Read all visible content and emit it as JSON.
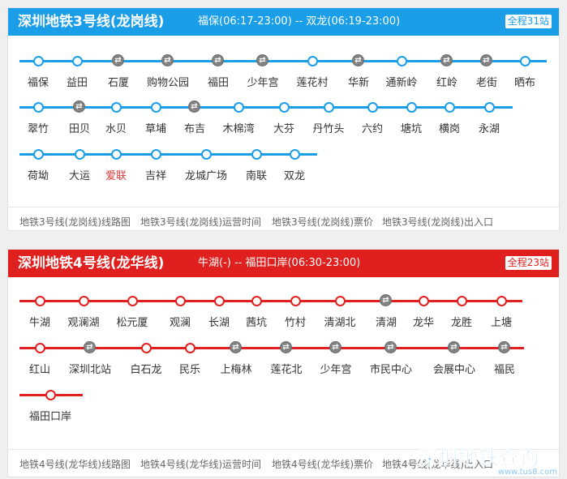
{
  "line3": {
    "name": "深圳地铁3号线(龙岗线)",
    "meta": "福保(06:17-23:00) -- 双龙(06:19-23:00)",
    "badge": "全程31站",
    "color": "#1a9ee8",
    "rows": [
      [
        {
          "name": "福保",
          "transfer": false
        },
        {
          "name": "益田",
          "transfer": false
        },
        {
          "name": "石厦",
          "transfer": true
        },
        {
          "name": "购物公园",
          "transfer": true
        },
        {
          "name": "福田",
          "transfer": true
        },
        {
          "name": "少年宫",
          "transfer": true
        },
        {
          "name": "莲花村",
          "transfer": false
        },
        {
          "name": "华新",
          "transfer": true
        },
        {
          "name": "通新岭",
          "transfer": false
        },
        {
          "name": "红岭",
          "transfer": true
        },
        {
          "name": "老街",
          "transfer": true
        },
        {
          "name": "晒布",
          "transfer": false
        }
      ],
      [
        {
          "name": "翠竹",
          "transfer": false
        },
        {
          "name": "田贝",
          "transfer": true
        },
        {
          "name": "水贝",
          "transfer": false
        },
        {
          "name": "草埔",
          "transfer": false
        },
        {
          "name": "布吉",
          "transfer": true
        },
        {
          "name": "木棉湾",
          "transfer": false
        },
        {
          "name": "大芬",
          "transfer": false
        },
        {
          "name": "丹竹头",
          "transfer": false
        },
        {
          "name": "六约",
          "transfer": false
        },
        {
          "name": "塘坑",
          "transfer": false
        },
        {
          "name": "横岗",
          "transfer": false
        },
        {
          "name": "永湖",
          "transfer": false
        }
      ],
      [
        {
          "name": "荷坳",
          "transfer": false
        },
        {
          "name": "大运",
          "transfer": false
        },
        {
          "name": "爱联",
          "transfer": false,
          "highlight": true
        },
        {
          "name": "吉祥",
          "transfer": false
        },
        {
          "name": "龙城广场",
          "transfer": false
        },
        {
          "name": "南联",
          "transfer": false
        },
        {
          "name": "双龙",
          "transfer": false
        }
      ]
    ],
    "links": [
      "地铁3号线(龙岗线)线路图",
      "地铁3号线(龙岗线)运营时间",
      "地铁3号线(龙岗线)票价",
      "地铁3号线(龙岗线)出入口"
    ]
  },
  "line4": {
    "name": "深圳地铁4号线(龙华线)",
    "meta": "牛湖(-) -- 福田口岸(06:30-23:00)",
    "badge": "全程23站",
    "color": "#e0201e",
    "rows": [
      [
        {
          "name": "牛湖",
          "transfer": false
        },
        {
          "name": "观澜湖",
          "transfer": false
        },
        {
          "name": "松元厦",
          "transfer": false
        },
        {
          "name": "观澜",
          "transfer": false
        },
        {
          "name": "长湖",
          "transfer": false
        },
        {
          "name": "茜坑",
          "transfer": false
        },
        {
          "name": "竹村",
          "transfer": false
        },
        {
          "name": "清湖北",
          "transfer": false
        },
        {
          "name": "清湖",
          "transfer": true
        },
        {
          "name": "龙华",
          "transfer": false
        },
        {
          "name": "龙胜",
          "transfer": false
        },
        {
          "name": "上塘",
          "transfer": false
        }
      ],
      [
        {
          "name": "红山",
          "transfer": false
        },
        {
          "name": "深圳北站",
          "transfer": true
        },
        {
          "name": "白石龙",
          "transfer": false
        },
        {
          "name": "民乐",
          "transfer": false
        },
        {
          "name": "上梅林",
          "transfer": true
        },
        {
          "name": "莲花北",
          "transfer": true
        },
        {
          "name": "少年宫",
          "transfer": true
        },
        {
          "name": "市民中心",
          "transfer": true
        },
        {
          "name": "会展中心",
          "transfer": true
        },
        {
          "name": "福民",
          "transfer": true
        }
      ],
      [
        {
          "name": "福田口岸",
          "transfer": false
        }
      ]
    ],
    "links": [
      "地铁4号线(龙华线)线路图",
      "地铁4号线(龙华线)运营时间",
      "地铁4号线(龙华线)票价",
      "地铁4号线(龙华线)出入口"
    ]
  },
  "watermark": {
    "title": "深圳地铁查询",
    "url": "www.tus8.com"
  }
}
